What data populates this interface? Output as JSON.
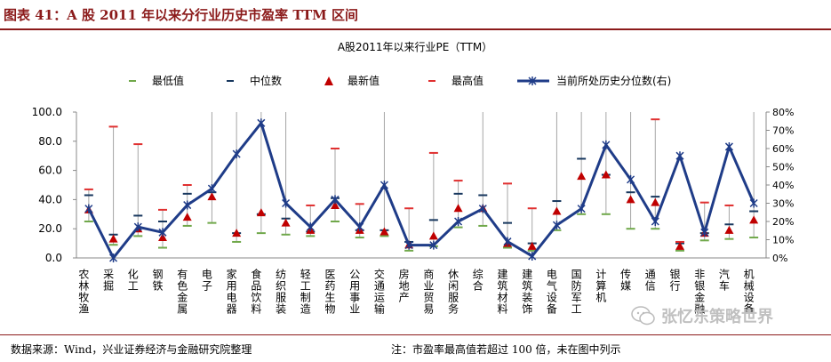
{
  "header": {
    "title": "图表 41：A 股 2011 年以来分行业历史市盈率  TTM 区间"
  },
  "footer": {
    "source": "数据来源：Wind，兴业证券经济与金融研究院整理",
    "note": "注：市盈率最高值若超过 100 倍，未在图中列示"
  },
  "watermark": {
    "text": "张忆东策略世界",
    "icon": "wechat-icon"
  },
  "chart_data": {
    "type": "line",
    "title": "A股2011年以来行业PE（TTM）",
    "categories": [
      "农林牧渔",
      "采掘",
      "化工",
      "钢铁",
      "有色金属",
      "电子",
      "家用电器",
      "食品饮料",
      "纺织服装",
      "轻工制造",
      "医药生物",
      "公用事业",
      "交通运输",
      "房地产",
      "商业贸易",
      "休闲服务",
      "综合",
      "建筑材料",
      "建筑装饰",
      "电气设备",
      "国防军工",
      "计算机",
      "传媒",
      "通信",
      "银行",
      "非银金融",
      "汽车",
      "机械设备"
    ],
    "legend": [
      "最低值",
      "中位数",
      "最新值",
      "最高值",
      "当前所处历史分位数(右)"
    ],
    "legend_position": "top",
    "colors": {
      "min": "#70a84a",
      "median": "#17375e",
      "latest": "#c00000",
      "max": "#e03030",
      "percentile": "#1f3c88",
      "whisker": "#a6a6a6"
    },
    "series": [
      {
        "name": "最低值",
        "values": [
          25,
          9,
          15,
          7,
          22,
          24,
          11,
          17,
          16,
          15,
          25,
          14,
          15,
          5,
          8,
          21,
          22,
          7,
          5,
          19,
          30,
          30,
          20,
          20,
          5,
          12,
          13,
          14
        ]
      },
      {
        "name": "中位数",
        "values": [
          43,
          16,
          29,
          25,
          44,
          45,
          17,
          30,
          27,
          18,
          41,
          19,
          19,
          11,
          26,
          44,
          43,
          24,
          10,
          39,
          68,
          57,
          45,
          42,
          10,
          17,
          23,
          32
        ]
      },
      {
        "name": "最新值",
        "values": [
          33,
          13,
          20,
          14,
          28,
          42,
          17,
          31,
          24,
          19,
          36,
          19,
          18,
          9,
          15,
          34,
          34,
          10,
          8,
          32,
          56,
          57,
          40,
          38,
          8,
          17,
          19,
          26
        ]
      },
      {
        "name": "最高值",
        "values": [
          47,
          90,
          78,
          33,
          50,
          100,
          100,
          100,
          100,
          36,
          75,
          37,
          100,
          34,
          72,
          53,
          100,
          51,
          34,
          100,
          100,
          100,
          100,
          95,
          11,
          38,
          36,
          100
        ]
      },
      {
        "name": "当前所处历史分位数(右)",
        "axis": "right",
        "values": [
          27,
          0,
          17,
          14,
          29,
          38,
          57,
          74,
          30,
          17,
          32,
          17,
          40,
          7,
          7,
          20,
          27,
          9,
          1,
          18,
          27,
          62,
          43,
          20,
          56,
          14,
          61,
          30
        ]
      }
    ],
    "ylim": [
      0,
      100
    ],
    "yticks": [
      "0.0",
      "20.0",
      "40.0",
      "60.0",
      "80.0",
      "100.0"
    ],
    "y2lim": [
      0,
      80
    ],
    "y2ticks": [
      "0%",
      "10%",
      "20%",
      "30%",
      "40%",
      "50%",
      "60%",
      "70%",
      "80%"
    ],
    "grid": false
  }
}
